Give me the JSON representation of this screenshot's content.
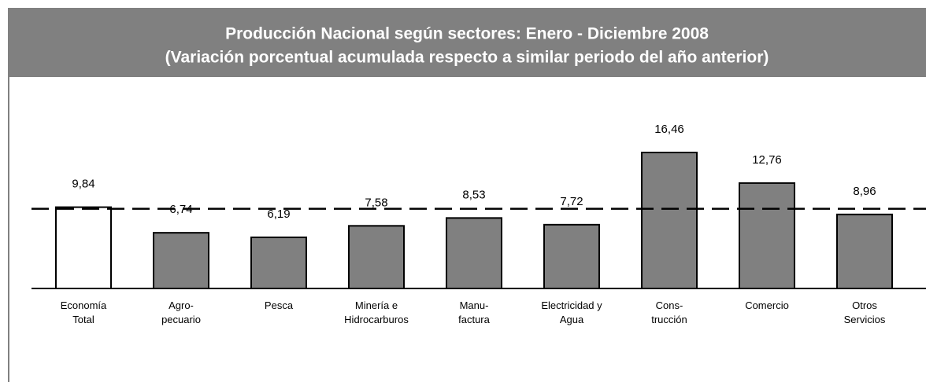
{
  "chart_data": {
    "type": "bar",
    "title": "Producción Nacional según sectores: Enero - Diciembre 2008",
    "subtitle": "(Variación porcentual acumulada respecto a similar periodo del año anterior)",
    "categories": [
      [
        "Economía",
        "Total"
      ],
      [
        "Agro-",
        "pecuario"
      ],
      [
        "Pesca"
      ],
      [
        "Minería e",
        "Hidrocarburos"
      ],
      [
        "Manu-",
        "factura"
      ],
      [
        "Electricidad y",
        "Agua"
      ],
      [
        "Cons-",
        "trucción"
      ],
      [
        "Comercio"
      ],
      [
        "Otros",
        "Servicios"
      ]
    ],
    "values": [
      9.84,
      6.74,
      6.19,
      7.58,
      8.53,
      7.72,
      16.46,
      12.76,
      8.96
    ],
    "value_labels": [
      "9,84",
      "6,74",
      "6,19",
      "7,58",
      "8,53",
      "7,72",
      "16,46",
      "12,76",
      "8,96"
    ],
    "colors": [
      "#ffffff",
      "#808080",
      "#808080",
      "#808080",
      "#808080",
      "#808080",
      "#808080",
      "#808080",
      "#808080"
    ]
  }
}
